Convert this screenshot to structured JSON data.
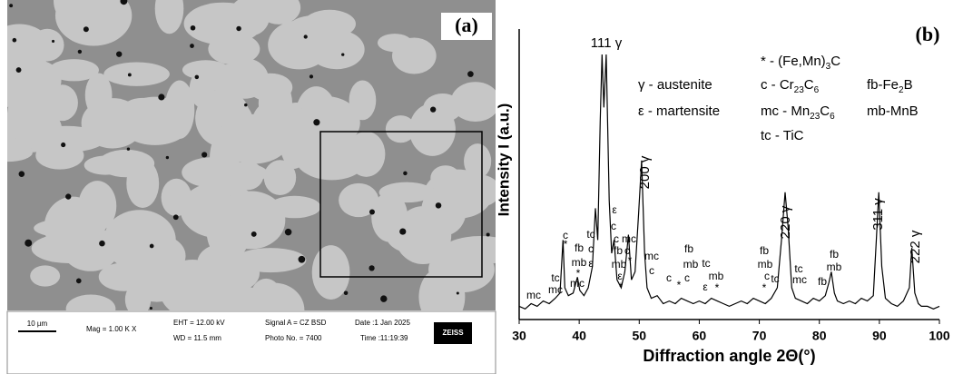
{
  "panel_a": {
    "label": "(a)",
    "scale_bar": "10 µm",
    "mag": "Mag =  1.00 K X",
    "eht": "EHT = 12.00 kV",
    "wd": "WD = 11.5 mm",
    "signal": "Signal A = CZ BSD",
    "photo": "Photo No. = 7400",
    "date": "Date :1 Jan 2025",
    "time": "Time :11:19:39",
    "brand": "ZEISS"
  },
  "chart_data": {
    "type": "line",
    "label": "(b)",
    "x_label": "Diffraction angle 2Θ(°)",
    "y_label": "Intensity I (a.u.)",
    "xlim": [
      30,
      100
    ],
    "xticks": [
      30,
      40,
      50,
      60,
      70,
      80,
      90,
      100
    ],
    "ylim": [
      0,
      100
    ],
    "color": "#000000",
    "x": [
      30,
      31,
      32,
      33,
      34,
      35,
      36,
      36.8,
      37.3,
      37.6,
      38.2,
      39,
      39.7,
      40.1,
      40.8,
      41.5,
      42.2,
      42.7,
      43.1,
      43.5,
      43.8,
      44.1,
      44.5,
      45,
      45.4,
      45.8,
      46.3,
      47,
      47.6,
      48.2,
      48.7,
      49.3,
      49.9,
      50.4,
      50.9,
      51.3,
      52,
      53,
      54,
      55,
      56,
      57,
      58,
      59,
      60,
      61,
      62,
      63,
      64,
      65,
      66,
      67,
      68,
      69,
      70,
      71,
      72,
      73,
      73.7,
      74.3,
      74.8,
      75.4,
      76,
      77,
      78,
      79,
      80,
      81,
      81.6,
      82,
      82.5,
      83,
      84,
      85,
      86,
      87,
      88,
      89,
      89.5,
      89.9,
      90.4,
      91,
      92,
      93,
      94,
      95,
      95.4,
      95.9,
      96.5,
      97,
      98,
      99,
      100
    ],
    "values": [
      5,
      4,
      6,
      5,
      7,
      6,
      8,
      10,
      30,
      12,
      9,
      10,
      16,
      11,
      9,
      12,
      20,
      42,
      30,
      75,
      100,
      80,
      100,
      45,
      25,
      30,
      15,
      12,
      18,
      32,
      15,
      18,
      40,
      60,
      25,
      12,
      8,
      9,
      6,
      7,
      6,
      8,
      7,
      6,
      7,
      6,
      8,
      7,
      6,
      5,
      6,
      7,
      6,
      8,
      7,
      6,
      8,
      12,
      30,
      48,
      35,
      12,
      8,
      7,
      6,
      8,
      7,
      9,
      14,
      18,
      10,
      7,
      6,
      7,
      6,
      8,
      7,
      9,
      30,
      48,
      20,
      8,
      6,
      5,
      7,
      12,
      27,
      10,
      6,
      5,
      5,
      4,
      5
    ],
    "peak_labels": [
      "111 γ",
      "200 γ",
      "220 γ",
      "311 γ",
      "222 γ"
    ],
    "legend": [
      [
        "γ - austenite"
      ],
      [
        "ε - martensite"
      ],
      [
        "* - (Fe,Mn)",
        "3",
        "C"
      ],
      [
        "c - Cr",
        "23",
        "C",
        "6"
      ],
      [
        "mc - Mn",
        "23",
        "C",
        "6"
      ],
      [
        "tc - TiC"
      ],
      [
        "fb-Fe",
        "2",
        "B"
      ],
      [
        "mb-MnB"
      ]
    ],
    "annotations": [
      "mc",
      "tc",
      "mc",
      "c",
      "*",
      "fb",
      "mb",
      "*",
      "mc",
      "tc",
      "c",
      "ε",
      "ε",
      "c",
      "c",
      "fb",
      "mb",
      "ε",
      "*",
      "mc",
      "c",
      "*",
      "mc",
      "c",
      "c",
      "*",
      "c",
      "fb",
      "mb",
      "tc",
      "mb",
      "ε",
      "*",
      "fb",
      "mb",
      "c",
      "*",
      "tc",
      "tc",
      "mc",
      "fb",
      "mb",
      "fb"
    ]
  }
}
